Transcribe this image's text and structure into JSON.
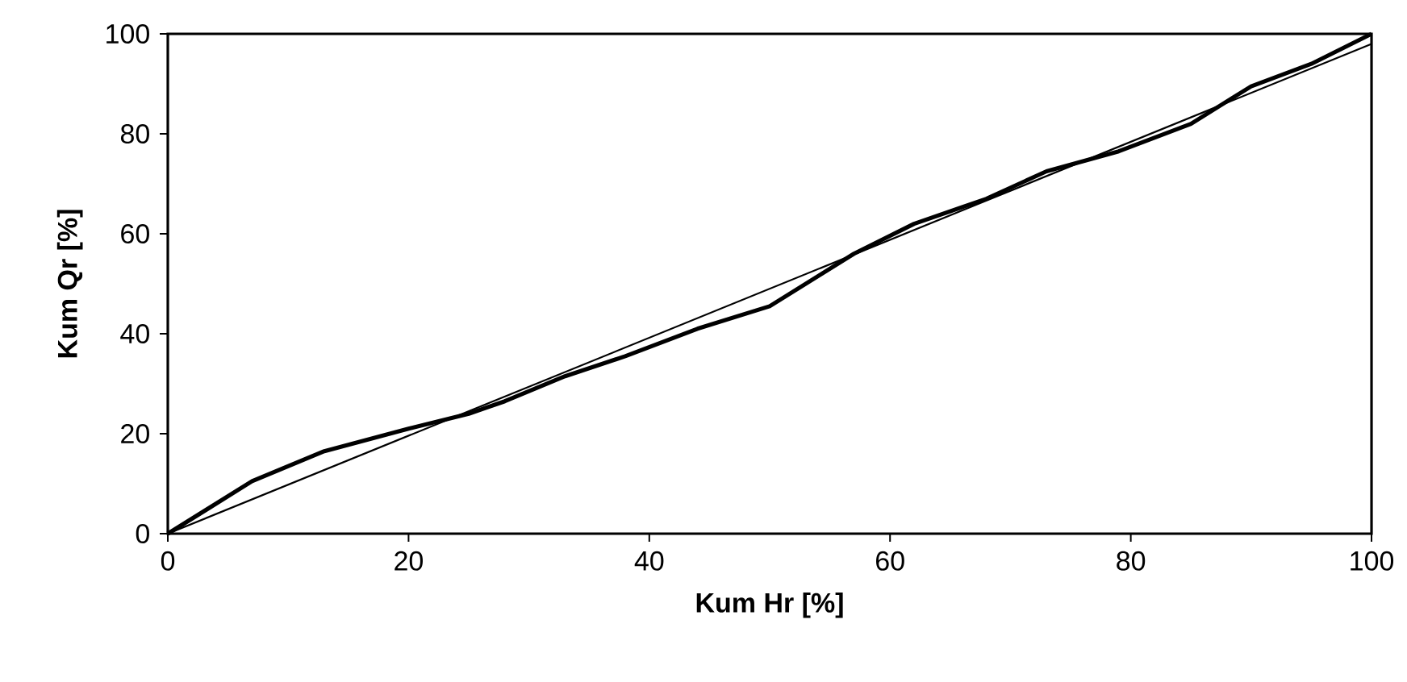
{
  "chart_data": {
    "type": "line",
    "xlabel": "Kum Hr [%]",
    "ylabel": "Kum Qr [%]",
    "xlim": [
      0,
      100
    ],
    "ylim": [
      0,
      100
    ],
    "xticks": [
      0,
      20,
      40,
      60,
      80,
      100
    ],
    "yticks": [
      0,
      20,
      40,
      60,
      80,
      100
    ],
    "grid": false,
    "marker": "none",
    "line_style": "solid",
    "series": [
      {
        "color": "#000000",
        "x": [
          0,
          7,
          13,
          20,
          25,
          28,
          33,
          38,
          44,
          50,
          57,
          62,
          68,
          73,
          79,
          85,
          90,
          95,
          100
        ],
        "values": [
          0,
          10.5,
          16.5,
          21,
          24,
          26.5,
          31.5,
          35.5,
          41,
          45.5,
          56,
          62,
          67,
          72.5,
          76.5,
          82,
          89.5,
          94,
          100
        ]
      },
      {
        "type": "line",
        "color": "#000000",
        "x": [
          0,
          100
        ],
        "values": [
          0,
          98
        ]
      }
    ]
  }
}
